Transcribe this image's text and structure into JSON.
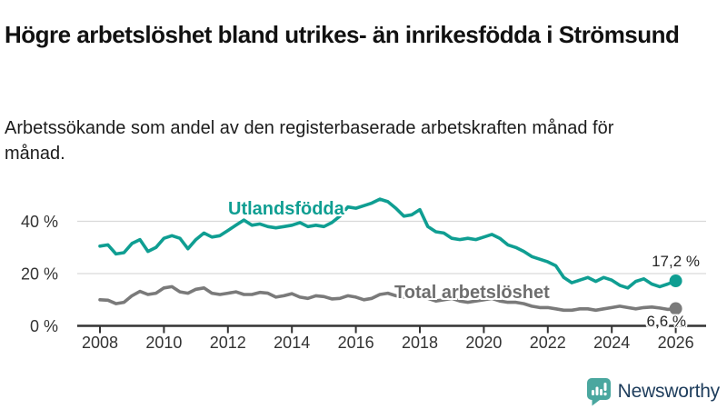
{
  "header": {
    "title": "Högre arbetslöshet bland utrikes- än inrikesfödda i Strömsund",
    "subtitle": "Arbetssökande som andel av den registerbaserade arbetskraften månad för månad."
  },
  "chart_data": {
    "type": "line",
    "title": "Högre arbetslöshet bland utrikes- än inrikesfödda i Strömsund",
    "subtitle": "Arbetssökande som andel av den registerbaserade arbetskraften månad för månad.",
    "xlabel": "",
    "ylabel": "",
    "unit": "%",
    "grid": "horizontal",
    "legend_position": "inline-labels",
    "xlim": [
      2007.3,
      2027.0
    ],
    "ylim": [
      0,
      55
    ],
    "x_ticks": [
      2008,
      2010,
      2012,
      2014,
      2016,
      2018,
      2020,
      2022,
      2024,
      2026
    ],
    "y_ticks": [
      0,
      20,
      40
    ],
    "y_tick_suffix": " %",
    "x_start": 2008.0,
    "x_step_years": 0.25,
    "series": [
      {
        "name": "Utlandsfödda",
        "slug": "utlandsfodda",
        "color": "#0f9e92",
        "end_label": "17,2 %",
        "end_value": 17.2,
        "values": [
          30.5,
          31.0,
          27.5,
          28.0,
          31.5,
          33.0,
          28.5,
          30.0,
          33.5,
          34.5,
          33.5,
          29.5,
          33.0,
          35.5,
          34.0,
          34.5,
          36.5,
          38.5,
          40.5,
          38.5,
          39.0,
          38.0,
          37.5,
          38.0,
          38.5,
          39.5,
          38.0,
          38.5,
          38.0,
          39.5,
          42.0,
          45.5,
          45.0,
          46.0,
          47.0,
          48.5,
          47.5,
          45.0,
          42.0,
          42.5,
          44.5,
          38.0,
          36.0,
          35.5,
          33.5,
          33.0,
          33.5,
          33.0,
          34.0,
          35.0,
          33.5,
          31.0,
          30.0,
          28.5,
          26.5,
          25.5,
          24.5,
          23.0,
          18.5,
          16.5,
          17.5,
          18.5,
          17.0,
          18.5,
          17.5,
          15.5,
          14.5,
          17.0,
          18.0,
          16.0,
          15.0,
          16.0,
          17.2
        ]
      },
      {
        "name": "Total arbetslöshet",
        "slug": "total-arbetsloshet",
        "color": "#7a7a7a",
        "end_label": "6,6 %",
        "end_value": 6.6,
        "values": [
          10.0,
          9.8,
          8.5,
          9.0,
          11.5,
          13.2,
          12.0,
          12.5,
          14.5,
          15.0,
          13.0,
          12.5,
          14.0,
          14.5,
          12.5,
          12.0,
          12.5,
          13.0,
          12.0,
          12.0,
          12.8,
          12.5,
          11.0,
          11.5,
          12.3,
          11.0,
          10.5,
          11.5,
          11.2,
          10.3,
          10.5,
          11.5,
          11.0,
          10.0,
          10.5,
          12.0,
          12.5,
          11.5,
          11.0,
          11.0,
          11.5,
          10.5,
          9.5,
          10.0,
          10.5,
          9.5,
          9.0,
          9.5,
          10.0,
          10.5,
          9.5,
          9.0,
          9.0,
          8.5,
          7.5,
          7.0,
          7.0,
          6.5,
          6.0,
          6.0,
          6.5,
          6.5,
          6.0,
          6.5,
          7.0,
          7.5,
          7.0,
          6.5,
          7.0,
          7.2,
          6.8,
          6.3,
          6.6
        ]
      }
    ]
  },
  "branding": {
    "name": "Newsworthy"
  },
  "colors": {
    "accent_teal": "#0f9e92",
    "line_gray": "#7a7a7a",
    "brand_icon_teal": "#4aa79f",
    "brand_text_navy": "#1e3d5c",
    "gridline": "#d9d9d9",
    "axis": "#333333"
  }
}
